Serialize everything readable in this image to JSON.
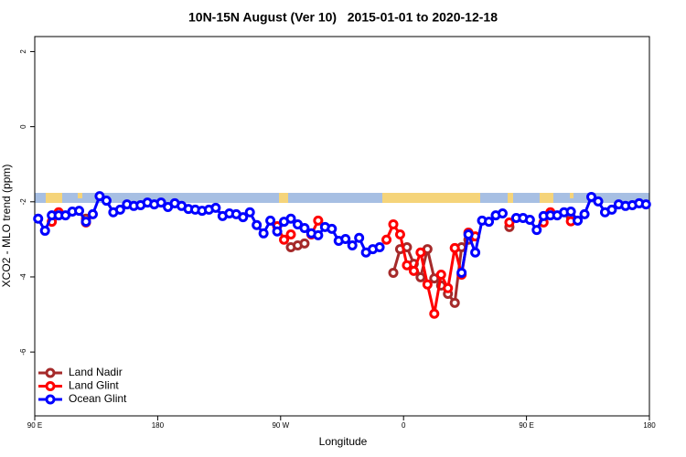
{
  "chart_data": {
    "type": "line",
    "title": "10N-15N August (Ver 10)   2015-01-01 to 2020-12-18",
    "xlabel": "Longitude",
    "ylabel": "XCO2 - MLO trend (ppm)",
    "xlim": [
      90,
      540
    ],
    "ylim": [
      -7.7,
      2.4
    ],
    "xticks": [
      {
        "value": 90,
        "label": "90 E"
      },
      180,
      {
        "value": 270,
        "label": "90 W"
      },
      {
        "value": 360,
        "label": "0"
      },
      {
        "value": 450,
        "label": "90 E"
      },
      {
        "value": 540,
        "label": "180"
      }
    ],
    "yticks": [
      2,
      0,
      -2,
      -4,
      -6
    ],
    "legend": "bottom-left",
    "series": [
      {
        "name": "Land Nadir",
        "color": "#a52a2a",
        "x": [
          127.5,
          132.5,
          277.5,
          282.5,
          287.5,
          292.5,
          352.5,
          357.5,
          362.5,
          367.5,
          372.5,
          377.5,
          382.5,
          387.5,
          392.5,
          397.5,
          402.5,
          407.5,
          412.5,
          437.5,
          442.5,
          482.5
        ],
        "values": [
          -2.45,
          null,
          -3.21,
          -3.16,
          -3.11,
          null,
          -3.89,
          -3.26,
          -3.21,
          -3.65,
          -4.01,
          -3.26,
          -4.04,
          -4.23,
          -4.45,
          -4.69,
          -3.21,
          -3.01,
          null,
          -2.67,
          null,
          -2.41
        ]
      },
      {
        "name": "Land Glint",
        "color": "#ff0000",
        "x": [
          102.5,
          107.5,
          112.5,
          127.5,
          132.5,
          267.5,
          272.5,
          277.5,
          282.5,
          292.5,
          297.5,
          302.5,
          347.5,
          352.5,
          357.5,
          362.5,
          367.5,
          372.5,
          377.5,
          382.5,
          387.5,
          392.5,
          397.5,
          402.5,
          407.5,
          412.5,
          417.5,
          437.5,
          442.5,
          462.5,
          467.5,
          472.5,
          482.5
        ],
        "values": [
          -2.53,
          -2.28,
          null,
          -2.55,
          null,
          -2.65,
          -3.01,
          -2.87,
          null,
          -2.87,
          -2.5,
          null,
          -3.01,
          -2.6,
          -2.87,
          -3.69,
          -3.84,
          -3.35,
          -4.2,
          -4.98,
          -3.94,
          -4.3,
          -3.23,
          -3.94,
          -2.82,
          -2.92,
          null,
          -2.55,
          null,
          -2.55,
          -2.28,
          null,
          -2.52
        ]
      },
      {
        "name": "Ocean Glint",
        "color": "#0000ff",
        "x": [
          92.5,
          97.5,
          102.5,
          107.5,
          112.5,
          117.5,
          122.5,
          127.5,
          132.5,
          137.5,
          142.5,
          147.5,
          152.5,
          157.5,
          162.5,
          167.5,
          172.5,
          177.5,
          182.5,
          187.5,
          192.5,
          197.5,
          202.5,
          207.5,
          212.5,
          217.5,
          222.5,
          227.5,
          232.5,
          237.5,
          242.5,
          247.5,
          252.5,
          257.5,
          262.5,
          267.5,
          272.5,
          277.5,
          282.5,
          287.5,
          292.5,
          297.5,
          302.5,
          307.5,
          312.5,
          317.5,
          322.5,
          327.5,
          332.5,
          337.5,
          342.5,
          347.5,
          402.5,
          407.5,
          412.5,
          417.5,
          422.5,
          427.5,
          432.5,
          437.5,
          442.5,
          447.5,
          452.5,
          457.5,
          462.5,
          467.5,
          472.5,
          477.5,
          482.5,
          487.5,
          492.5,
          497.5,
          502.5,
          507.5,
          512.5,
          517.5,
          522.5,
          527.5,
          532.5,
          537.5
        ],
        "values": [
          -2.45,
          -2.77,
          -2.36,
          -2.36,
          -2.36,
          -2.26,
          -2.24,
          -2.53,
          -2.33,
          -1.85,
          -1.97,
          -2.28,
          -2.21,
          -2.07,
          -2.11,
          -2.09,
          -2.02,
          -2.07,
          -2.02,
          -2.14,
          -2.04,
          -2.11,
          -2.19,
          -2.21,
          -2.24,
          -2.21,
          -2.16,
          -2.38,
          -2.31,
          -2.33,
          -2.41,
          -2.28,
          -2.62,
          -2.84,
          -2.5,
          -2.79,
          -2.53,
          -2.45,
          -2.6,
          -2.7,
          -2.84,
          -2.89,
          -2.67,
          -2.72,
          -3.04,
          -2.99,
          -3.16,
          -2.96,
          -3.35,
          -3.26,
          -3.21,
          null,
          -3.89,
          -2.87,
          -3.35,
          -2.5,
          -2.53,
          -2.36,
          -2.31,
          null,
          -2.43,
          -2.43,
          -2.48,
          -2.75,
          -2.38,
          -2.36,
          -2.36,
          -2.28,
          -2.26,
          -2.5,
          -2.33,
          -1.87,
          -1.99,
          -2.28,
          -2.21,
          -2.07,
          -2.11,
          -2.09,
          -2.04,
          -2.07
        ]
      }
    ]
  }
}
